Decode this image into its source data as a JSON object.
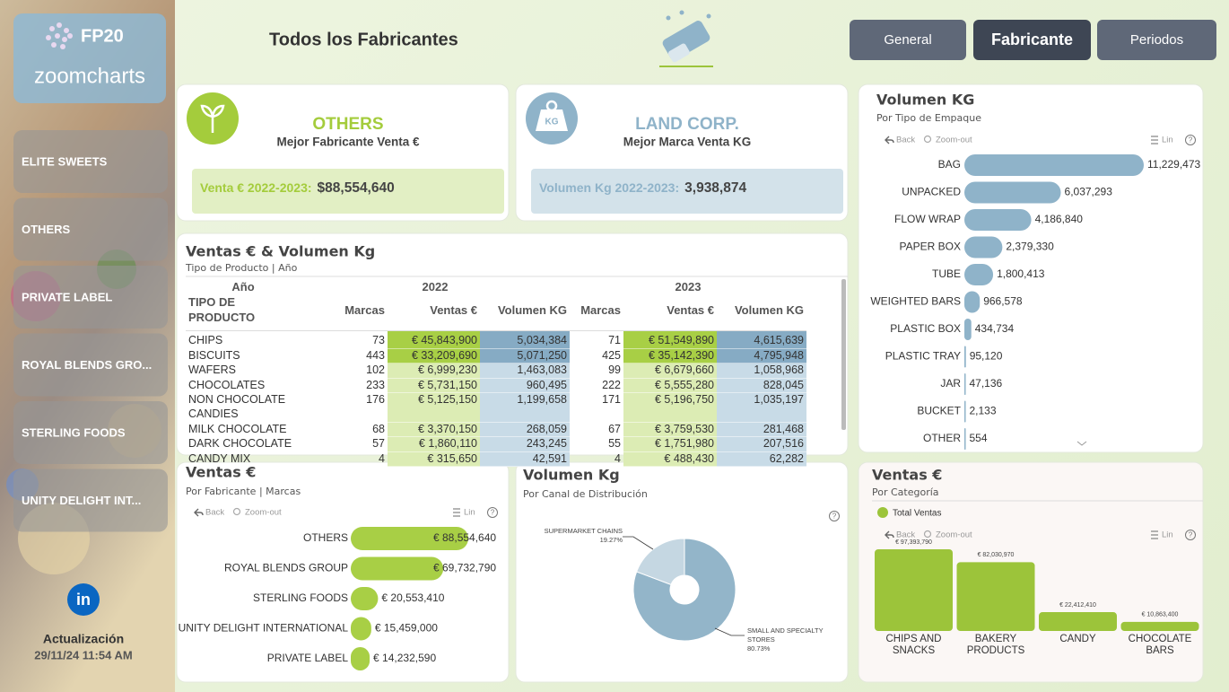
{
  "sidebar": {
    "logo": "FP20",
    "brand": "zoomcharts",
    "filters": [
      "ELITE SWEETS",
      "OTHERS",
      "PRIVATE LABEL",
      "ROYAL BLENDS GRO...",
      "STERLING FOODS",
      "UNITY DELIGHT INT..."
    ],
    "social": "in",
    "update_label": "Actualización",
    "update_time": "29/11/24 11:54 AM"
  },
  "header": {
    "title": "Todos los Fabricantes",
    "nav": [
      "General",
      "Fabricante",
      "Periodos"
    ],
    "active": 1
  },
  "kpis": [
    {
      "name": "OTHERS",
      "caption": "Mejor Fabricante Venta €",
      "label": "Venta € 2022-2023:",
      "value": "$88,554,640",
      "color": "#a4cc3c"
    },
    {
      "icon": "KG",
      "name": "LAND CORP.",
      "caption": "Mejor Marca Venta KG",
      "label": "Volumen Kg 2022-2023:",
      "value": "3,938,874",
      "color": "#8fb3c9"
    }
  ],
  "toolbar": {
    "back": "Back",
    "zoom": "Zoom-out",
    "lin": "Lin",
    "help": "?"
  },
  "table": {
    "title": "Ventas € & Volumen Kg",
    "subtitle": "Tipo de Producto | Año",
    "year_label": "Año",
    "product_label": "TIPO DE PRODUCTO",
    "years": [
      "2022",
      "2023"
    ],
    "columns": [
      "Marcas",
      "Ventas €",
      "Volumen KG"
    ],
    "rows": [
      [
        "CHIPS",
        "73",
        "€ 45,843,900",
        "5,034,384",
        "71",
        "€ 51,549,890",
        "4,615,639"
      ],
      [
        "BISCUITS",
        "443",
        "€ 33,209,690",
        "5,071,250",
        "425",
        "€ 35,142,390",
        "4,795,948"
      ],
      [
        "WAFERS",
        "102",
        "€ 6,999,230",
        "1,463,083",
        "99",
        "€ 6,679,660",
        "1,058,968"
      ],
      [
        "CHOCOLATES",
        "233",
        "€ 5,731,150",
        "960,495",
        "222",
        "€ 5,555,280",
        "828,045"
      ],
      [
        "NON CHOCOLATE CANDIES",
        "176",
        "€ 5,125,150",
        "1,199,658",
        "171",
        "€ 5,196,750",
        "1,035,197"
      ],
      [
        "MILK CHOCOLATE",
        "68",
        "€ 3,370,150",
        "268,059",
        "67",
        "€ 3,759,530",
        "281,468"
      ],
      [
        "DARK CHOCOLATE",
        "57",
        "€ 1,860,110",
        "243,245",
        "55",
        "€ 1,751,980",
        "207,516"
      ],
      [
        "CANDY MIX",
        "4",
        "€ 315,650",
        "42,591",
        "4",
        "€ 488,430",
        "62,282"
      ]
    ]
  },
  "chart_data": [
    {
      "type": "hbar",
      "title": "Volumen KG",
      "subtitle": "Por Tipo de Empaque",
      "color": "#8fb3c9",
      "categories": [
        "BAG",
        "UNPACKED",
        "FLOW WRAP",
        "PAPER BOX",
        "TUBE",
        "WEIGHTED BARS",
        "PLASTIC BOX",
        "PLASTIC TRAY",
        "JAR",
        "BUCKET",
        "OTHER"
      ],
      "values": [
        11229473,
        6037293,
        4186840,
        2379330,
        1800413,
        966578,
        434734,
        95120,
        47136,
        2133,
        554
      ],
      "value_labels": [
        "11,229,473",
        "6,037,293",
        "4,186,840",
        "2,379,330",
        "1,800,413",
        "966,578",
        "434,734",
        "95,120",
        "47,136",
        "2,133",
        "554"
      ]
    },
    {
      "type": "hbar",
      "title": "Ventas €",
      "subtitle": "Por Fabricante | Marcas",
      "color": "#a8cf45",
      "categories": [
        "OTHERS",
        "ROYAL BLENDS GROUP",
        "STERLING FOODS",
        "UNITY DELIGHT INTERNATIONAL",
        "PRIVATE LABEL"
      ],
      "values": [
        88554640,
        69732790,
        20553410,
        15459000,
        14232590
      ],
      "value_labels": [
        "€ 88,554,640",
        "€ 69,732,790",
        "€ 20,553,410",
        "€ 15,459,000",
        "€ 14,232,590"
      ]
    },
    {
      "type": "pie",
      "title": "Volumen Kg",
      "subtitle": "Por Canal de Distribución",
      "donut": true,
      "categories": [
        "SMALL AND SPECIALTY STORES",
        "SUPERMARKET CHAINS"
      ],
      "values": [
        80.73,
        19.27
      ],
      "value_labels": [
        "80.73%",
        "19.27%"
      ],
      "colors": [
        "#93b5c9",
        "#c5d7e2"
      ]
    },
    {
      "type": "column",
      "title": "Ventas €",
      "subtitle": "Por Categoría",
      "categories": [
        "CHIPS AND SNACKS",
        "BAKERY PRODUCTS",
        "CANDY",
        "CHOCOLATE BARS"
      ],
      "series": [
        {
          "name": "Total Ventas",
          "color": "#9cc43a",
          "values": [
            97393790,
            82030970,
            22412410,
            10863400
          ],
          "value_labels": [
            "€ 97,393,790",
            "€ 82,030,970",
            "€ 22,412,410",
            "€ 10,863,400"
          ]
        }
      ]
    }
  ]
}
